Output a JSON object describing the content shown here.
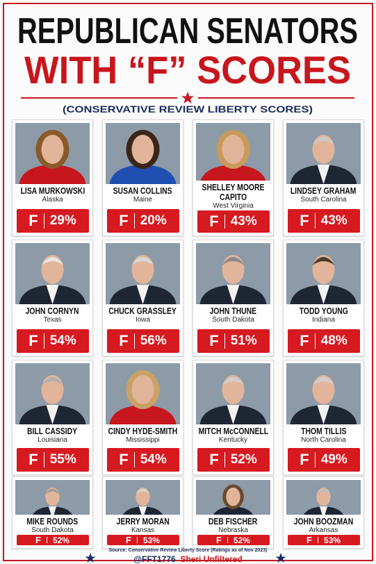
{
  "header": {
    "title_line1": "REPUBLICAN SENATORS",
    "title_line2": "WITH “F” SCORES",
    "subtitle": "(CONSERVATIVE REVIEW LIBERTY SCORES)"
  },
  "cards": [
    {
      "name": "LISA MURKOWSKI",
      "state": "Alaska",
      "grade": "F",
      "score": "29%"
    },
    {
      "name": "SUSAN COLLINS",
      "state": "Maine",
      "grade": "F",
      "score": "20%"
    },
    {
      "name": "SHELLEY MOORE CAPITO",
      "state": "West Virginia",
      "grade": "F",
      "score": "43%"
    },
    {
      "name": "LINDSEY GRAHAM",
      "state": "South Carolina",
      "grade": "F",
      "score": "43%"
    },
    {
      "name": "JOHN CORNYN",
      "state": "Texas",
      "grade": "F",
      "score": "54%"
    },
    {
      "name": "CHUCK GRASSLEY",
      "state": "Iowa",
      "grade": "F",
      "score": "56%"
    },
    {
      "name": "JOHN THUNE",
      "state": "South Dakota",
      "grade": "F",
      "score": "51%"
    },
    {
      "name": "TODD YOUNG",
      "state": "Indiana",
      "grade": "F",
      "score": "48%"
    },
    {
      "name": "BILL CASSIDY",
      "state": "Louisiana",
      "grade": "F",
      "score": "55%"
    },
    {
      "name": "CINDY HYDE-SMITH",
      "state": "Mississippi",
      "grade": "F",
      "score": "54%"
    },
    {
      "name": "MITCH McCONNELL",
      "state": "Kentucky",
      "grade": "F",
      "score": "52%"
    },
    {
      "name": "THOM TILLIS",
      "state": "North Carolina",
      "grade": "F",
      "score": "49%"
    },
    {
      "name": "MIKE ROUNDS",
      "state": "South Dakota",
      "grade": "F",
      "score": "52%"
    },
    {
      "name": "JERRY MORAN",
      "state": "Kansas",
      "grade": "F",
      "score": "53%"
    },
    {
      "name": "DEB FISCHER",
      "state": "Nebraska",
      "grade": "F",
      "score": "52%"
    },
    {
      "name": "JOHN BOOZMAN",
      "state": "Arkansas",
      "grade": "F",
      "score": "53%"
    }
  ],
  "footer": {
    "source": "Source: Conservative Review Liberty Score (Ratings as of Nov 2023)",
    "handle": "@FFT1776",
    "brand": "Sheri Unfiltered"
  }
}
